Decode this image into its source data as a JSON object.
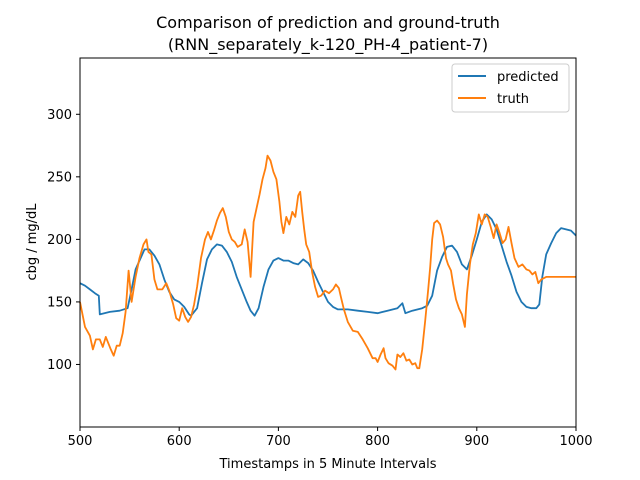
{
  "chart_data": {
    "type": "line",
    "title": "Comparison of prediction and ground-truth",
    "subtitle": "(RNN_separately_k-120_PH-4_patient-7)",
    "xlabel": "Timestamps in 5 Minute Intervals",
    "ylabel": "cbg / mg/dL",
    "xlim": [
      500,
      1000
    ],
    "ylim": [
      50,
      345
    ],
    "xticks": [
      500,
      600,
      700,
      800,
      900,
      1000
    ],
    "yticks": [
      100,
      150,
      200,
      250,
      300
    ],
    "grid": false,
    "legend": "top-right",
    "series": [
      {
        "name": "predicted",
        "color": "#1f77b4",
        "points": [
          [
            500,
            165
          ],
          [
            505,
            163
          ],
          [
            510,
            160
          ],
          [
            515,
            157
          ],
          [
            519,
            155
          ],
          [
            520,
            140
          ],
          [
            530,
            142
          ],
          [
            540,
            143
          ],
          [
            548,
            145
          ],
          [
            552,
            160
          ],
          [
            556,
            176
          ],
          [
            560,
            183
          ],
          [
            565,
            192
          ],
          [
            570,
            192
          ],
          [
            575,
            187
          ],
          [
            580,
            180
          ],
          [
            585,
            168
          ],
          [
            590,
            158
          ],
          [
            595,
            152
          ],
          [
            600,
            150
          ],
          [
            605,
            146
          ],
          [
            610,
            140
          ],
          [
            612,
            139
          ],
          [
            618,
            145
          ],
          [
            623,
            165
          ],
          [
            628,
            184
          ],
          [
            633,
            192
          ],
          [
            638,
            196
          ],
          [
            643,
            195
          ],
          [
            648,
            190
          ],
          [
            653,
            182
          ],
          [
            658,
            170
          ],
          [
            663,
            160
          ],
          [
            668,
            150
          ],
          [
            672,
            143
          ],
          [
            676,
            139
          ],
          [
            680,
            145
          ],
          [
            685,
            162
          ],
          [
            690,
            176
          ],
          [
            695,
            183
          ],
          [
            700,
            185
          ],
          [
            705,
            183
          ],
          [
            710,
            183
          ],
          [
            715,
            181
          ],
          [
            720,
            180
          ],
          [
            725,
            184
          ],
          [
            730,
            181
          ],
          [
            735,
            175
          ],
          [
            740,
            166
          ],
          [
            745,
            158
          ],
          [
            750,
            150
          ],
          [
            755,
            146
          ],
          [
            760,
            144
          ],
          [
            770,
            144
          ],
          [
            780,
            143
          ],
          [
            790,
            142
          ],
          [
            800,
            141
          ],
          [
            810,
            143
          ],
          [
            820,
            145
          ],
          [
            825,
            149
          ],
          [
            828,
            141
          ],
          [
            835,
            143
          ],
          [
            845,
            145
          ],
          [
            850,
            147
          ],
          [
            855,
            155
          ],
          [
            860,
            175
          ],
          [
            865,
            186
          ],
          [
            870,
            194
          ],
          [
            875,
            195
          ],
          [
            880,
            190
          ],
          [
            885,
            180
          ],
          [
            890,
            176
          ],
          [
            895,
            187
          ],
          [
            900,
            200
          ],
          [
            905,
            214
          ],
          [
            910,
            220
          ],
          [
            915,
            216
          ],
          [
            920,
            208
          ],
          [
            925,
            195
          ],
          [
            930,
            182
          ],
          [
            935,
            171
          ],
          [
            940,
            158
          ],
          [
            945,
            150
          ],
          [
            950,
            146
          ],
          [
            955,
            145
          ],
          [
            960,
            145
          ],
          [
            963,
            148
          ],
          [
            966,
            170
          ],
          [
            970,
            188
          ],
          [
            975,
            197
          ],
          [
            980,
            205
          ],
          [
            985,
            209
          ],
          [
            990,
            208
          ],
          [
            995,
            207
          ],
          [
            1000,
            203
          ]
        ]
      },
      {
        "name": "truth",
        "color": "#ff7f0e",
        "points": [
          [
            500,
            150
          ],
          [
            505,
            130
          ],
          [
            510,
            123
          ],
          [
            513,
            112
          ],
          [
            516,
            120
          ],
          [
            520,
            120
          ],
          [
            523,
            114
          ],
          [
            526,
            122
          ],
          [
            528,
            118
          ],
          [
            531,
            112
          ],
          [
            534,
            107
          ],
          [
            537,
            115
          ],
          [
            540,
            115
          ],
          [
            543,
            125
          ],
          [
            546,
            142
          ],
          [
            549,
            175
          ],
          [
            552,
            150
          ],
          [
            556,
            170
          ],
          [
            560,
            185
          ],
          [
            564,
            196
          ],
          [
            567,
            200
          ],
          [
            569,
            190
          ],
          [
            572,
            188
          ],
          [
            575,
            168
          ],
          [
            578,
            160
          ],
          [
            583,
            160
          ],
          [
            587,
            165
          ],
          [
            590,
            159
          ],
          [
            594,
            148
          ],
          [
            597,
            137
          ],
          [
            600,
            135
          ],
          [
            603,
            145
          ],
          [
            606,
            138
          ],
          [
            609,
            134
          ],
          [
            612,
            138
          ],
          [
            615,
            148
          ],
          [
            618,
            162
          ],
          [
            622,
            185
          ],
          [
            626,
            200
          ],
          [
            629,
            206
          ],
          [
            632,
            200
          ],
          [
            635,
            207
          ],
          [
            638,
            215
          ],
          [
            641,
            221
          ],
          [
            644,
            225
          ],
          [
            647,
            218
          ],
          [
            650,
            206
          ],
          [
            653,
            200
          ],
          [
            656,
            198
          ],
          [
            659,
            194
          ],
          [
            663,
            196
          ],
          [
            666,
            208
          ],
          [
            669,
            198
          ],
          [
            672,
            170
          ],
          [
            675,
            214
          ],
          [
            678,
            225
          ],
          [
            681,
            236
          ],
          [
            684,
            248
          ],
          [
            687,
            257
          ],
          [
            689,
            267
          ],
          [
            692,
            263
          ],
          [
            695,
            254
          ],
          [
            698,
            248
          ],
          [
            701,
            230
          ],
          [
            703,
            214
          ],
          [
            705,
            205
          ],
          [
            708,
            218
          ],
          [
            711,
            212
          ],
          [
            714,
            222
          ],
          [
            717,
            218
          ],
          [
            720,
            235
          ],
          [
            722,
            238
          ],
          [
            724,
            222
          ],
          [
            726,
            208
          ],
          [
            728,
            196
          ],
          [
            731,
            190
          ],
          [
            734,
            174
          ],
          [
            737,
            162
          ],
          [
            740,
            154
          ],
          [
            743,
            155
          ],
          [
            747,
            159
          ],
          [
            751,
            157
          ],
          [
            755,
            160
          ],
          [
            758,
            164
          ],
          [
            761,
            161
          ],
          [
            763,
            154
          ],
          [
            766,
            144
          ],
          [
            770,
            134
          ],
          [
            775,
            127
          ],
          [
            780,
            126
          ],
          [
            785,
            120
          ],
          [
            790,
            113
          ],
          [
            795,
            105
          ],
          [
            798,
            105
          ],
          [
            800,
            102
          ],
          [
            803,
            108
          ],
          [
            806,
            113
          ],
          [
            808,
            105
          ],
          [
            811,
            101
          ],
          [
            815,
            99
          ],
          [
            818,
            96
          ],
          [
            820,
            108
          ],
          [
            823,
            106
          ],
          [
            826,
            109
          ],
          [
            829,
            103
          ],
          [
            832,
            104
          ],
          [
            835,
            100
          ],
          [
            838,
            101
          ],
          [
            840,
            97
          ],
          [
            842,
            97
          ],
          [
            845,
            112
          ],
          [
            848,
            135
          ],
          [
            851,
            160
          ],
          [
            853,
            178
          ],
          [
            855,
            200
          ],
          [
            857,
            213
          ],
          [
            860,
            215
          ],
          [
            863,
            212
          ],
          [
            866,
            202
          ],
          [
            869,
            185
          ],
          [
            871,
            180
          ],
          [
            874,
            175
          ],
          [
            876,
            165
          ],
          [
            879,
            152
          ],
          [
            882,
            145
          ],
          [
            885,
            140
          ],
          [
            888,
            130
          ],
          [
            890,
            156
          ],
          [
            893,
            180
          ],
          [
            896,
            196
          ],
          [
            899,
            205
          ],
          [
            902,
            220
          ],
          [
            905,
            212
          ],
          [
            908,
            220
          ],
          [
            911,
            218
          ],
          [
            914,
            210
          ],
          [
            917,
            201
          ],
          [
            920,
            212
          ],
          [
            923,
            205
          ],
          [
            926,
            197
          ],
          [
            929,
            200
          ],
          [
            932,
            210
          ],
          [
            935,
            197
          ],
          [
            938,
            185
          ],
          [
            942,
            178
          ],
          [
            946,
            180
          ],
          [
            950,
            176
          ],
          [
            953,
            175
          ],
          [
            956,
            172
          ],
          [
            959,
            174
          ],
          [
            962,
            165
          ],
          [
            965,
            168
          ],
          [
            970,
            170
          ],
          [
            980,
            170
          ],
          [
            990,
            170
          ],
          [
            1000,
            170
          ]
        ]
      }
    ]
  }
}
